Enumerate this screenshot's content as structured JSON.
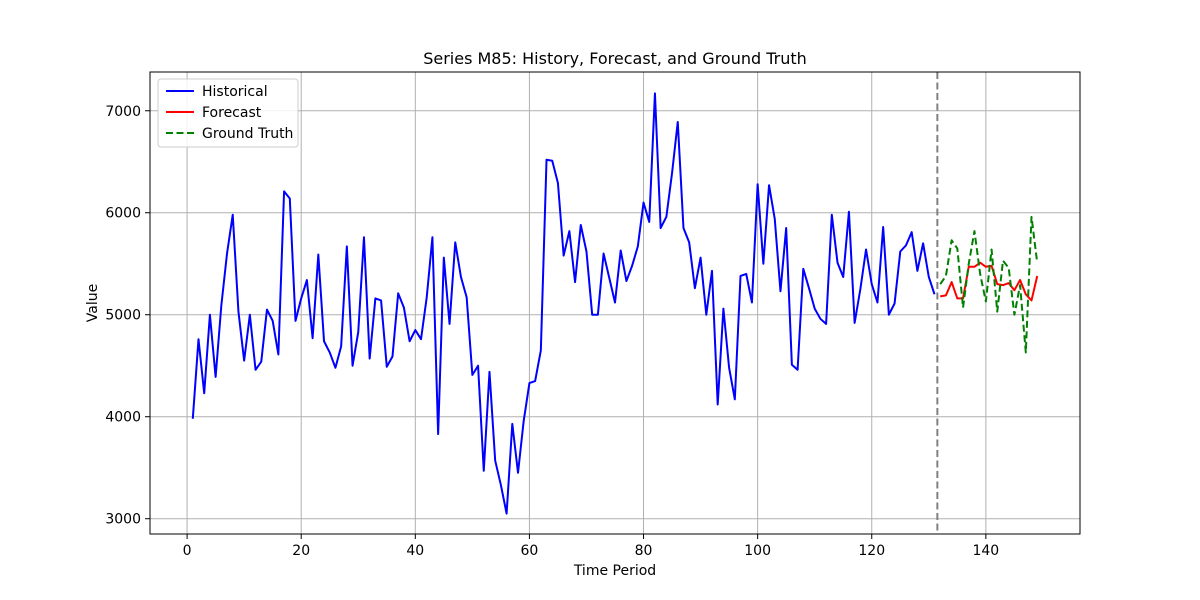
{
  "chart_data": {
    "type": "line",
    "title": "Series M85: History, Forecast, and Ground Truth",
    "xlabel": "Time Period",
    "ylabel": "Value",
    "xlim": [
      -6.5,
      156.5
    ],
    "ylim": [
      2850,
      7380
    ],
    "xticks": [
      0,
      20,
      40,
      60,
      80,
      100,
      120,
      140
    ],
    "yticks": [
      3000,
      4000,
      5000,
      6000,
      7000
    ],
    "grid": true,
    "legend_position": "top-left",
    "forecast_start_marker": 131.5,
    "series": [
      {
        "name": "Historical",
        "color": "#0000ff",
        "style": "solid",
        "x_start": 1,
        "values": [
          3980,
          4760,
          4230,
          5000,
          4390,
          5090,
          5600,
          5980,
          5030,
          4550,
          5000,
          4460,
          4540,
          5050,
          4940,
          4610,
          6210,
          6140,
          4940,
          5160,
          5340,
          4770,
          5590,
          4740,
          4630,
          4480,
          4690,
          5670,
          4500,
          4830,
          5760,
          4570,
          5160,
          5140,
          4490,
          4590,
          5210,
          5070,
          4740,
          4850,
          4760,
          5170,
          5760,
          3830,
          5560,
          4910,
          5710,
          5370,
          5170,
          4410,
          4500,
          3470,
          4440,
          3570,
          3330,
          3050,
          3930,
          3450,
          3960,
          4330,
          4350,
          4650,
          6520,
          6510,
          6290,
          5580,
          5820,
          5320,
          5880,
          5620,
          5000,
          5000,
          5600,
          5360,
          5120,
          5630,
          5330,
          5480,
          5670,
          6100,
          5910,
          7170,
          5850,
          5960,
          6390,
          6890,
          5850,
          5710,
          5260,
          5560,
          5000,
          5430,
          4120,
          5060,
          4480,
          4170,
          5380,
          5400,
          5120,
          6280,
          5500,
          6270,
          5940,
          5230,
          5850,
          4510,
          4460,
          5450,
          5260,
          5060,
          4960,
          4910,
          5980,
          5510,
          5370,
          6010,
          4920,
          5250,
          5640,
          5300,
          5120,
          5860,
          5000,
          5110,
          5620,
          5680,
          5810,
          5430,
          5700,
          5370,
          5200
        ]
      },
      {
        "name": "Forecast",
        "color": "#ff0000",
        "style": "solid",
        "x_start": 132,
        "values": [
          5180,
          5190,
          5320,
          5160,
          5160,
          5470,
          5470,
          5510,
          5470,
          5480,
          5300,
          5290,
          5310,
          5240,
          5340,
          5200,
          5140,
          5380
        ]
      },
      {
        "name": "Ground Truth",
        "color": "#008000",
        "style": "dashed",
        "x_start": 132,
        "values": [
          5300,
          5380,
          5730,
          5650,
          5070,
          5500,
          5820,
          5400,
          5130,
          5640,
          5030,
          5530,
          5460,
          5000,
          5290,
          4630,
          5960,
          5510
        ]
      }
    ]
  }
}
